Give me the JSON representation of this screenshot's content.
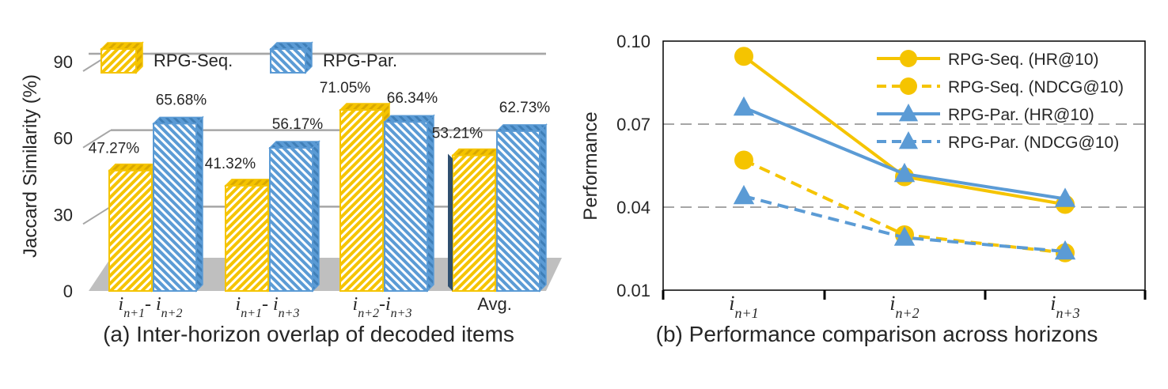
{
  "colors": {
    "seq": "#F5C400",
    "seq_dark": "#D9A800",
    "par": "#5B9BD5",
    "par_dark": "#3F7FB8",
    "grid": "#A6A6A6",
    "floor": "#BFBFBF",
    "text": "#262626"
  },
  "chart_data": [
    {
      "type": "bar",
      "caption": "(a) Inter-horizon overlap of decoded items",
      "ylabel": "Jaccard Similarity (%)",
      "ylim": [
        0,
        90
      ],
      "yticks": [
        "0",
        "30",
        "60",
        "90"
      ],
      "grid": true,
      "legend_position": "top",
      "categories": [
        {
          "base1": "i",
          "sub1": "n+1",
          "sep": "- ",
          "base2": "i",
          "sub2": "n+2"
        },
        {
          "base1": "i",
          "sub1": "n+1",
          "sep": "- ",
          "base2": "i",
          "sub2": "n+3"
        },
        {
          "base1": "i",
          "sub1": "n+2",
          "sep": "-",
          "base2": "i",
          "sub2": "n+3"
        },
        {
          "plain": "Avg."
        }
      ],
      "series": [
        {
          "name": "RPG-Seq.",
          "color_key": "seq",
          "values": [
            47.27,
            41.32,
            71.05,
            53.21
          ],
          "labels": [
            "47.27%",
            "41.32%",
            "71.05%",
            "53.21%"
          ]
        },
        {
          "name": "RPG-Par.",
          "color_key": "par",
          "values": [
            65.68,
            56.17,
            66.34,
            62.73
          ],
          "labels": [
            "65.68%",
            "56.17%",
            "66.34%",
            "62.73%"
          ]
        }
      ]
    },
    {
      "type": "line",
      "caption": "(b) Performance comparison across horizons",
      "ylabel": "Performance",
      "ylim": [
        0.01,
        0.1
      ],
      "yticks": [
        "0.01",
        "0.04",
        "0.07",
        "0.10"
      ],
      "gridlines_at": [
        0.04,
        0.07
      ],
      "legend_position": "top-right",
      "x": [
        {
          "base": "i",
          "sub": "n+1"
        },
        {
          "base": "i",
          "sub": "n+2"
        },
        {
          "base": "i",
          "sub": "n+3"
        }
      ],
      "series": [
        {
          "name": "RPG-Seq. (HR@10)",
          "color_key": "seq",
          "dashed": false,
          "marker": "circle",
          "values": [
            0.0945,
            0.051,
            0.041
          ]
        },
        {
          "name": "RPG-Seq. (NDCG@10)",
          "color_key": "seq",
          "dashed": true,
          "marker": "circle",
          "values": [
            0.057,
            0.03,
            0.0235
          ]
        },
        {
          "name": "RPG-Par. (HR@10)",
          "color_key": "par",
          "dashed": false,
          "marker": "triangle",
          "values": [
            0.076,
            0.052,
            0.043
          ]
        },
        {
          "name": "RPG-Par. (NDCG@10)",
          "color_key": "par",
          "dashed": true,
          "marker": "triangle",
          "values": [
            0.044,
            0.029,
            0.024
          ]
        }
      ]
    }
  ]
}
